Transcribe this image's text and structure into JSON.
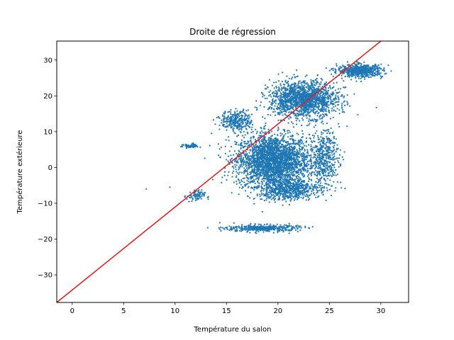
{
  "chart_data": {
    "type": "scatter",
    "title": "Droite de régression",
    "xlabel": "Température du salon",
    "ylabel": "Température extérieure",
    "xlim": [
      -1.5,
      32.7
    ],
    "ylim": [
      -37.7,
      35.3
    ],
    "x_ticks": [
      0,
      5,
      10,
      15,
      20,
      25,
      30
    ],
    "y_ticks": [
      -30,
      -20,
      -10,
      0,
      10,
      20,
      30
    ],
    "grid": false,
    "legend": "none",
    "scatter_color": "#1f77b4",
    "line_color": "#e41a1c",
    "regression_line": {
      "x": [
        -1.5,
        30.0
      ],
      "y": [
        -37.7,
        35.3
      ]
    },
    "clusters": [
      {
        "x_center": 19.5,
        "y_center": 2,
        "x_spread": 3.2,
        "y_spread": 6.5,
        "points": 2600
      },
      {
        "x_center": 22.5,
        "y_center": 19,
        "x_spread": 3.0,
        "y_spread": 4.5,
        "points": 1600
      },
      {
        "x_center": 28.0,
        "y_center": 27,
        "x_spread": 2.0,
        "y_spread": 1.6,
        "points": 600
      },
      {
        "x_center": 21.0,
        "y_center": -6,
        "x_spread": 2.8,
        "y_spread": 2.8,
        "points": 700
      },
      {
        "x_center": 18.5,
        "y_center": -17,
        "x_spread": 3.2,
        "y_spread": 0.9,
        "points": 400
      },
      {
        "x_center": 24.5,
        "y_center": 3,
        "x_spread": 1.3,
        "y_spread": 7,
        "points": 450
      },
      {
        "x_center": 16.0,
        "y_center": 13,
        "x_spread": 1.4,
        "y_spread": 2.5,
        "points": 300
      },
      {
        "x_center": 11.5,
        "y_center": 6,
        "x_spread": 0.8,
        "y_spread": 0.6,
        "points": 60
      },
      {
        "x_center": 12.0,
        "y_center": -8,
        "x_spread": 0.8,
        "y_spread": 1.5,
        "points": 80
      }
    ],
    "outliers": [
      {
        "x": 7.2,
        "y": -6
      },
      {
        "x": 9.5,
        "y": -5.5
      }
    ]
  }
}
